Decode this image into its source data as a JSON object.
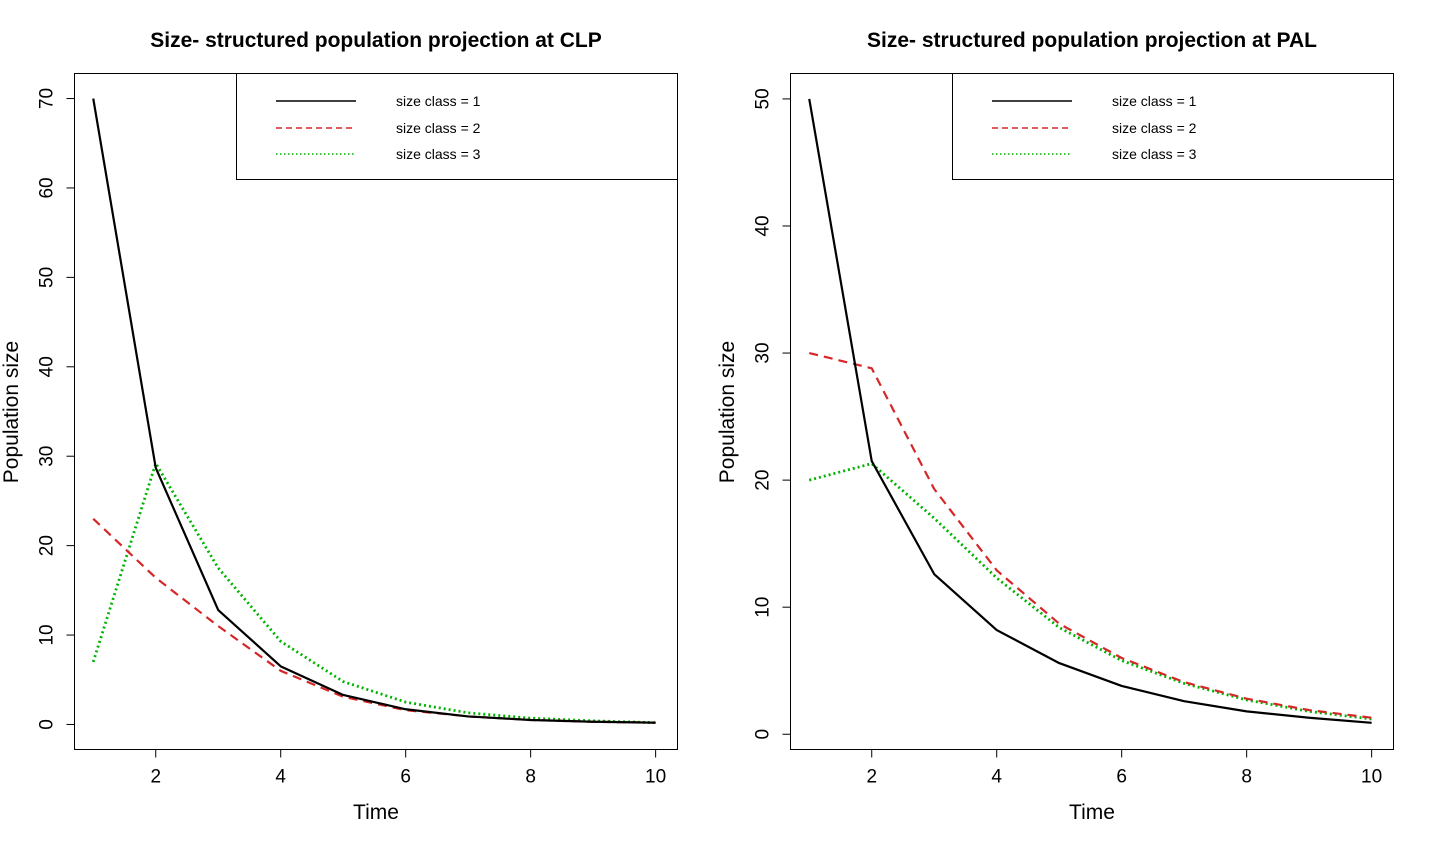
{
  "colors": {
    "size_class_1": "#000000",
    "size_class_2": "#d62728",
    "size_class_3": "#00b300"
  },
  "chart_data": [
    {
      "type": "line",
      "title": "Size- structured population projection at CLP",
      "xlabel": "Time",
      "ylabel": "Population size",
      "x": [
        1,
        2,
        3,
        4,
        5,
        6,
        7,
        8,
        9,
        10
      ],
      "xlim": [
        0.7,
        10.35
      ],
      "ylim": [
        -2.8,
        72.8
      ],
      "xticks": [
        2,
        4,
        6,
        8,
        10
      ],
      "yticks": [
        0,
        10,
        20,
        30,
        40,
        50,
        60,
        70
      ],
      "legend_position": "top-right",
      "series": [
        {
          "name": "size class = 1",
          "style": "solid",
          "color": "#000000",
          "values": [
            70,
            28.7,
            12.8,
            6.5,
            3.3,
            1.7,
            0.9,
            0.5,
            0.3,
            0.2
          ]
        },
        {
          "name": "size class = 2",
          "style": "dashed",
          "color": "#d62728",
          "values": [
            23,
            16.4,
            11.0,
            6.0,
            3.1,
            1.6,
            0.9,
            0.5,
            0.3,
            0.2
          ]
        },
        {
          "name": "size class = 3",
          "style": "dotted",
          "color": "#00b300",
          "values": [
            7,
            29.2,
            17.5,
            9.3,
            4.8,
            2.5,
            1.3,
            0.7,
            0.4,
            0.2
          ]
        }
      ]
    },
    {
      "type": "line",
      "title": "Size- structured population projection at PAL",
      "xlabel": "Time",
      "ylabel": "Population size",
      "x": [
        1,
        2,
        3,
        4,
        5,
        6,
        7,
        8,
        9,
        10
      ],
      "xlim": [
        0.7,
        10.35
      ],
      "ylim": [
        -1.2,
        52.0
      ],
      "xticks": [
        2,
        4,
        6,
        8,
        10
      ],
      "yticks": [
        0,
        10,
        20,
        30,
        40,
        50
      ],
      "legend_position": "top-right",
      "series": [
        {
          "name": "size class = 1",
          "style": "solid",
          "color": "#000000",
          "values": [
            50,
            21.5,
            12.6,
            8.2,
            5.6,
            3.8,
            2.6,
            1.8,
            1.3,
            0.9
          ]
        },
        {
          "name": "size class = 2",
          "style": "dashed",
          "color": "#d62728",
          "values": [
            30,
            28.8,
            19.3,
            12.9,
            8.7,
            6.0,
            4.1,
            2.8,
            1.9,
            1.3
          ]
        },
        {
          "name": "size class = 3",
          "style": "dotted",
          "color": "#00b300",
          "values": [
            20,
            21.3,
            17.0,
            12.3,
            8.4,
            5.8,
            4.0,
            2.7,
            1.8,
            1.2
          ]
        }
      ]
    }
  ]
}
